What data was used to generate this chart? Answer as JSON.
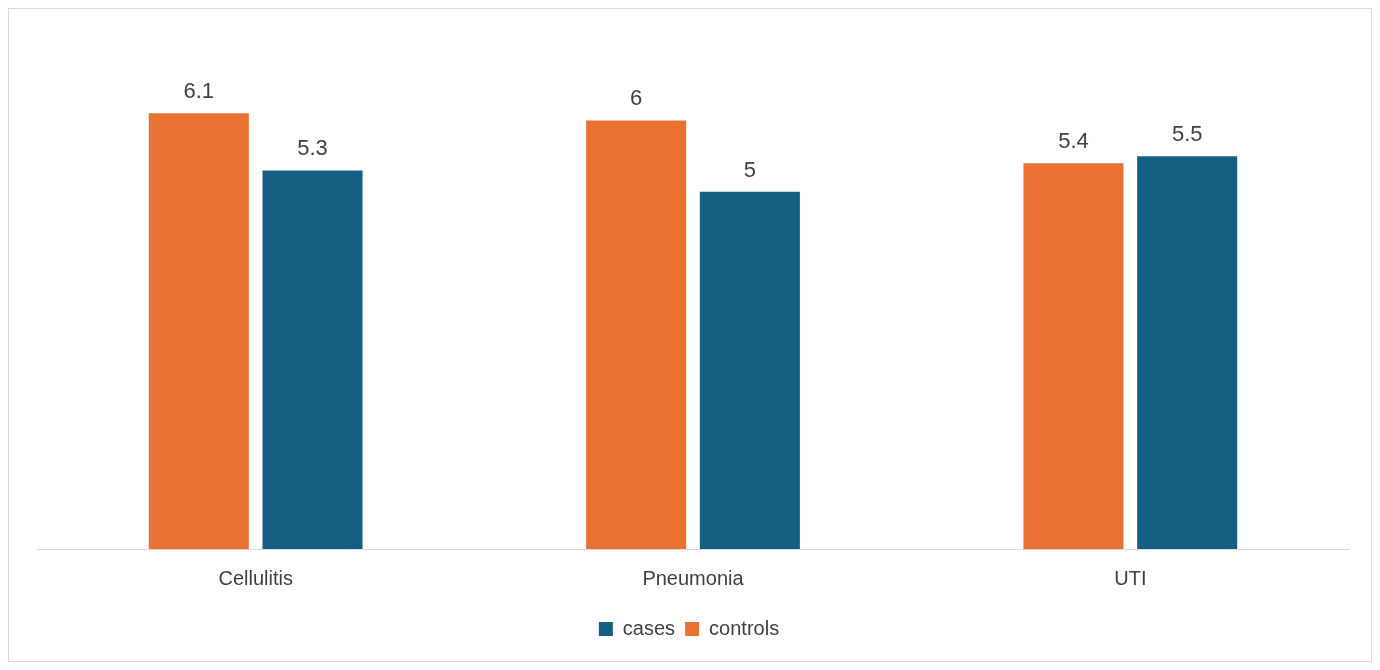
{
  "chart_data": {
    "type": "bar",
    "categories": [
      "Cellulitis",
      "Pneumonia",
      "UTI"
    ],
    "series": [
      {
        "name": "controls",
        "color": "#e97132",
        "values": [
          6.1,
          6,
          5.4
        ]
      },
      {
        "name": "cases",
        "color": "#156082",
        "values": [
          5.3,
          5,
          5.5
        ]
      }
    ],
    "data_labels": true,
    "legend": "bottom",
    "grid": false,
    "relative": false
  }
}
